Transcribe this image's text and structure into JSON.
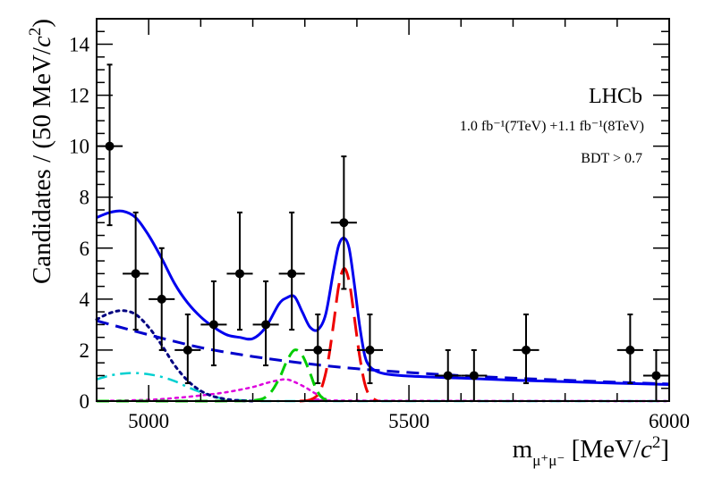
{
  "chart_data": {
    "type": "scatter",
    "title": "",
    "xlabel": "m_{μ+μ−} [MeV/c²]",
    "xlabel_parts": {
      "main": "m",
      "sub": "μ⁺μ⁻",
      "rest": " [MeV/",
      "c": "c",
      "sup": "2",
      "close": "]"
    },
    "ylabel_parts": {
      "main": "Candidates / (50 MeV/",
      "c": "c",
      "sup": "2",
      "close": ")"
    },
    "ylabel": "Candidates / (50 MeV/c²)",
    "xlim": [
      4900,
      6000
    ],
    "ylim": [
      0,
      15
    ],
    "xticks": [
      5000,
      5500,
      6000
    ],
    "xtick_labels": [
      "5000",
      "5500",
      "6000"
    ],
    "yticks": [
      0,
      2,
      4,
      6,
      8,
      10,
      12,
      14
    ],
    "ytick_labels": [
      "0",
      "2",
      "4",
      "6",
      "8",
      "10",
      "12",
      "14"
    ],
    "annotations": {
      "experiment": "LHCb",
      "lumi": "1.0 fb⁻¹(7TeV) +1.1 fb⁻¹(8TeV)",
      "cut": "BDT > 0.7"
    },
    "points": [
      {
        "x": 4925,
        "y": 10,
        "ylo": 3.1,
        "yhi": 3.2
      },
      {
        "x": 4975,
        "y": 5,
        "ylo": 2.2,
        "yhi": 2.4
      },
      {
        "x": 5025,
        "y": 4,
        "ylo": 2.0,
        "yhi": 2.0
      },
      {
        "x": 5075,
        "y": 2,
        "ylo": 1.3,
        "yhi": 1.4
      },
      {
        "x": 5125,
        "y": 3,
        "ylo": 1.6,
        "yhi": 1.7
      },
      {
        "x": 5175,
        "y": 5,
        "ylo": 2.2,
        "yhi": 2.4
      },
      {
        "x": 5225,
        "y": 3,
        "ylo": 1.6,
        "yhi": 1.7
      },
      {
        "x": 5275,
        "y": 5,
        "ylo": 2.2,
        "yhi": 2.4
      },
      {
        "x": 5325,
        "y": 2,
        "ylo": 1.3,
        "yhi": 1.4
      },
      {
        "x": 5375,
        "y": 7,
        "ylo": 2.6,
        "yhi": 2.6
      },
      {
        "x": 5425,
        "y": 2,
        "ylo": 1.3,
        "yhi": 1.4
      },
      {
        "x": 5575,
        "y": 1,
        "ylo": 1.0,
        "yhi": 1.0
      },
      {
        "x": 5625,
        "y": 1,
        "ylo": 1.0,
        "yhi": 1.0
      },
      {
        "x": 5725,
        "y": 2,
        "ylo": 1.3,
        "yhi": 1.4
      },
      {
        "x": 5925,
        "y": 2,
        "ylo": 1.3,
        "yhi": 1.4
      },
      {
        "x": 5975,
        "y": 1,
        "ylo": 1.0,
        "yhi": 1.0
      }
    ],
    "bin_half_width": 25,
    "series": [
      {
        "name": "total fit",
        "color": "#0000ee",
        "style": "solid",
        "width": 3,
        "x": [
          4900,
          4925,
          4950,
          4975,
          5000,
          5025,
          5050,
          5075,
          5100,
          5125,
          5150,
          5175,
          5200,
          5225,
          5250,
          5265,
          5280,
          5295,
          5310,
          5325,
          5340,
          5355,
          5365,
          5375,
          5385,
          5395,
          5405,
          5415,
          5425,
          5440,
          5460,
          5500,
          5600,
          5700,
          5800,
          5900,
          6000
        ],
        "y": [
          7.2,
          7.4,
          7.45,
          7.2,
          6.5,
          5.6,
          4.6,
          3.85,
          3.3,
          2.9,
          2.6,
          2.5,
          2.45,
          2.9,
          3.8,
          4.05,
          4.1,
          3.5,
          2.9,
          2.8,
          3.4,
          5.1,
          6.1,
          6.4,
          6.0,
          4.6,
          3.0,
          1.8,
          1.35,
          1.15,
          1.05,
          0.98,
          0.9,
          0.82,
          0.76,
          0.7,
          0.65
        ]
      },
      {
        "name": "signal",
        "color": "#ee0000",
        "style": "longdash",
        "width": 3,
        "x": [
          5290,
          5310,
          5325,
          5335,
          5345,
          5355,
          5365,
          5375,
          5385,
          5395,
          5405,
          5415,
          5425,
          5440
        ],
        "y": [
          0,
          0.05,
          0.25,
          0.7,
          1.6,
          3.0,
          4.5,
          5.2,
          4.7,
          3.3,
          1.8,
          0.7,
          0.2,
          0
        ]
      },
      {
        "name": "combinatorial",
        "color": "#0000cc",
        "style": "dash",
        "width": 3,
        "x": [
          4900,
          5000,
          5100,
          5200,
          5300,
          5400,
          5500,
          5600,
          5700,
          5800,
          5900,
          6000
        ],
        "y": [
          3.15,
          2.6,
          2.1,
          1.75,
          1.48,
          1.27,
          1.12,
          1.0,
          0.9,
          0.82,
          0.74,
          0.67
        ]
      },
      {
        "name": "peaking background",
        "color": "#000080",
        "style": "dot",
        "width": 3,
        "x": [
          4900,
          4925,
          4950,
          4975,
          5000,
          5025,
          5050,
          5075,
          5100,
          5125,
          5150,
          5175,
          5200
        ],
        "y": [
          3.2,
          3.45,
          3.55,
          3.4,
          2.9,
          2.2,
          1.4,
          0.8,
          0.4,
          0.18,
          0.07,
          0.02,
          0
        ]
      },
      {
        "name": "B0 component",
        "color": "#00cc00",
        "style": "dash",
        "width": 3,
        "x": [
          4900,
          5100,
          5200,
          5230,
          5250,
          5265,
          5280,
          5295,
          5310,
          5320,
          5330,
          5340,
          5350
        ],
        "y": [
          0,
          0,
          0.02,
          0.25,
          0.85,
          1.55,
          2.0,
          1.8,
          1.1,
          0.55,
          0.2,
          0.05,
          0
        ]
      },
      {
        "name": "semileptonic background",
        "color": "#00d0d0",
        "style": "dashdot",
        "width": 2.5,
        "x": [
          4900,
          4925,
          4950,
          4975,
          5000,
          5025,
          5050,
          5075,
          5100,
          5125,
          5150,
          5200,
          5300,
          6000
        ],
        "y": [
          0.85,
          1.0,
          1.08,
          1.1,
          1.05,
          0.95,
          0.78,
          0.55,
          0.35,
          0.18,
          0.08,
          0.01,
          0,
          0
        ]
      },
      {
        "name": "misidentified background",
        "color": "#dd00dd",
        "style": "dot",
        "width": 2.5,
        "x": [
          4900,
          5000,
          5050,
          5100,
          5150,
          5200,
          5225,
          5250,
          5265,
          5280,
          5300,
          5320,
          5340,
          5360,
          6000
        ],
        "y": [
          0,
          0.05,
          0.12,
          0.22,
          0.35,
          0.55,
          0.7,
          0.82,
          0.85,
          0.75,
          0.55,
          0.3,
          0.1,
          0.02,
          0
        ]
      }
    ]
  }
}
